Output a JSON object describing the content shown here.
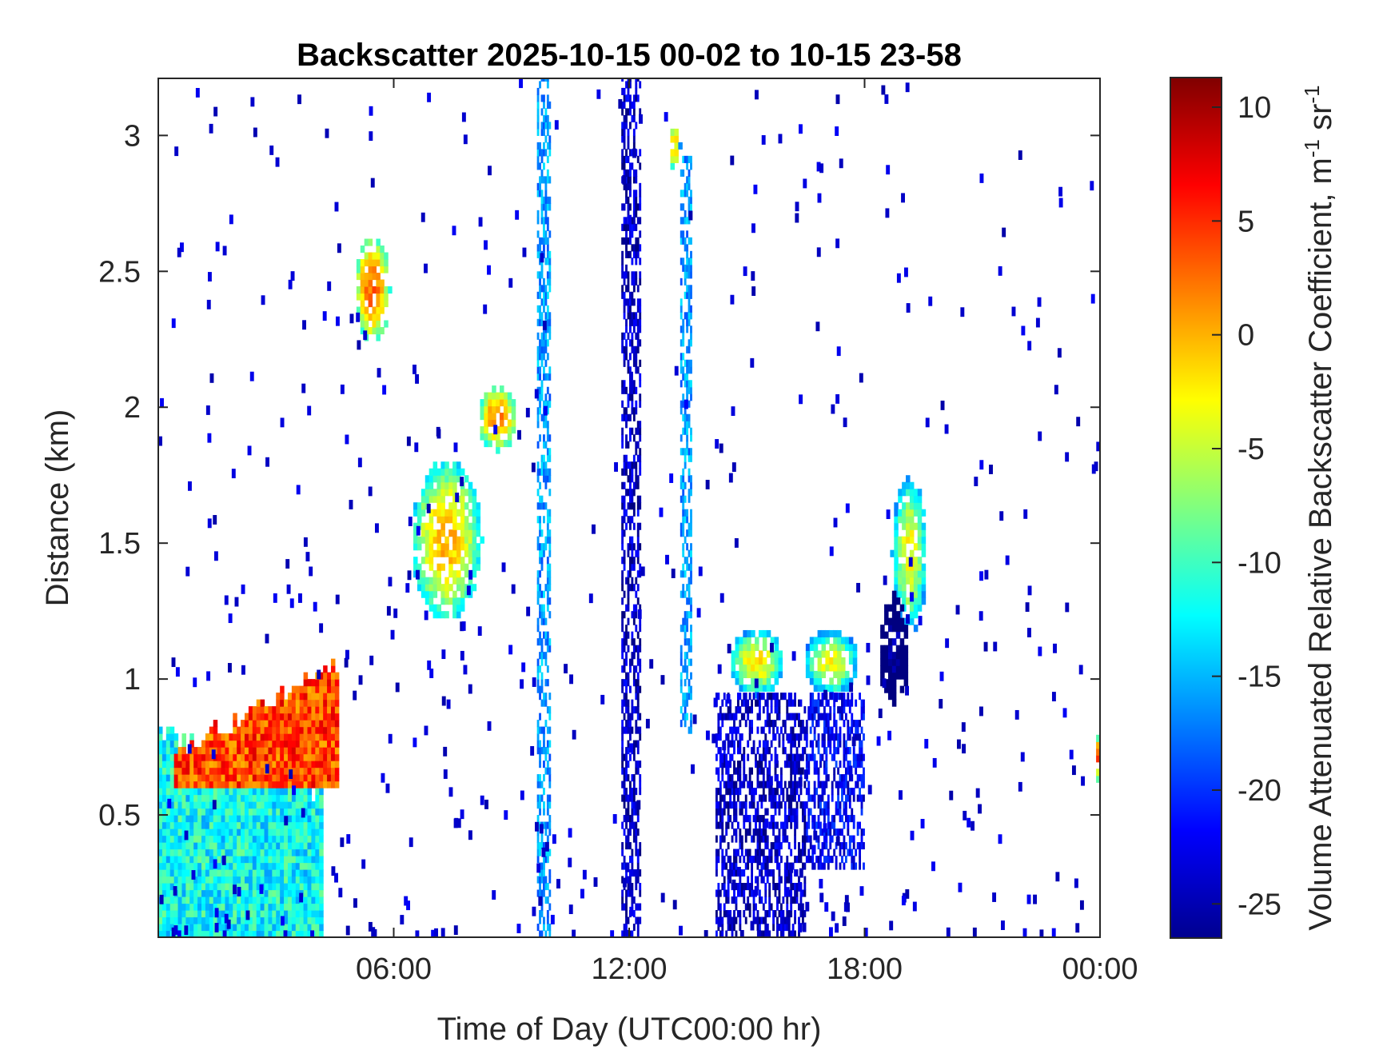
{
  "chart_data": {
    "type": "heatmap",
    "title": "Backscatter 2025-10-15 00-02 to 10-15 23-58",
    "xlabel": "Time of Day (UTC00:00 hr)",
    "ylabel": "Distance (km)",
    "x_unit": "hours UTC",
    "xlim": [
      0,
      24
    ],
    "ylim": [
      0.05,
      3.21
    ],
    "x_ticks": [
      {
        "value": 6,
        "label": "06:00"
      },
      {
        "value": 12,
        "label": "12:00"
      },
      {
        "value": 18,
        "label": "18:00"
      },
      {
        "value": 24,
        "label": "00:00"
      }
    ],
    "y_ticks": [
      {
        "value": 0.5,
        "label": "0.5"
      },
      {
        "value": 1,
        "label": "1"
      },
      {
        "value": 1.5,
        "label": "1.5"
      },
      {
        "value": 2,
        "label": "2"
      },
      {
        "value": 2.5,
        "label": "2.5"
      },
      {
        "value": 3,
        "label": "3"
      }
    ],
    "colorbar": {
      "label_main": "Volume Attenuated Relative Backscatter Coefficient, m",
      "label_sup1": "-1",
      "label_mid": " sr",
      "label_sup2": "-1",
      "range": [
        -26.5,
        11.3
      ],
      "colormap": "jet",
      "ticks": [
        {
          "value": 10,
          "label": "10"
        },
        {
          "value": 5,
          "label": "5"
        },
        {
          "value": 0,
          "label": "0"
        },
        {
          "value": -5,
          "label": "-5"
        },
        {
          "value": -10,
          "label": "-10"
        },
        {
          "value": -15,
          "label": "-15"
        },
        {
          "value": -20,
          "label": "-20"
        },
        {
          "value": -25,
          "label": "-25"
        }
      ]
    },
    "features": [
      {
        "kind": "layer",
        "x": [
          0,
          4.2
        ],
        "top": [
          0.8,
          0.55
        ],
        "bottom": [
          0.05,
          0.05
        ],
        "value": -12
      },
      {
        "kind": "layer",
        "x": [
          0.4,
          4.6
        ],
        "top": [
          0.72,
          1.05
        ],
        "bottom": [
          0.6,
          0.6
        ],
        "value": 4
      },
      {
        "kind": "blob",
        "cx": 5.4,
        "cy": 2.42,
        "rx": 0.45,
        "ry": 0.2,
        "value": 3
      },
      {
        "kind": "blob",
        "cx": 7.3,
        "cy": 1.5,
        "rx": 0.9,
        "ry": 0.3,
        "value": 0
      },
      {
        "kind": "blob",
        "cx": 8.6,
        "cy": 1.95,
        "rx": 0.5,
        "ry": 0.12,
        "value": 2
      },
      {
        "kind": "blob",
        "cx": 13.1,
        "cy": 2.95,
        "rx": 0.15,
        "ry": 0.1,
        "value": -1
      },
      {
        "kind": "blob",
        "cx": 15.2,
        "cy": 1.05,
        "rx": 0.7,
        "ry": 0.12,
        "value": -2
      },
      {
        "kind": "blob",
        "cx": 17.1,
        "cy": 1.05,
        "rx": 0.7,
        "ry": 0.12,
        "value": -3
      },
      {
        "kind": "blob",
        "cx": 19.1,
        "cy": 1.45,
        "rx": 0.45,
        "ry": 0.3,
        "value": -3
      },
      {
        "kind": "blob",
        "cx": 18.7,
        "cy": 1.1,
        "rx": 0.4,
        "ry": 0.2,
        "value": -24
      },
      {
        "kind": "blob",
        "cx": 23.9,
        "cy": 0.7,
        "rx": 0.1,
        "ry": 0.08,
        "value": 3
      },
      {
        "kind": "column",
        "x": [
          9.65,
          10.0
        ],
        "y": [
          0.05,
          3.21
        ],
        "value": -16
      },
      {
        "kind": "column",
        "x": [
          11.8,
          12.3
        ],
        "y": [
          0.05,
          3.21
        ],
        "value": -24
      },
      {
        "kind": "column",
        "x": [
          13.3,
          13.6
        ],
        "y": [
          0.8,
          2.9
        ],
        "value": -16
      },
      {
        "kind": "column",
        "x": [
          14.2,
          16.5
        ],
        "y": [
          0.05,
          0.95
        ],
        "value": -24
      },
      {
        "kind": "column",
        "x": [
          16.5,
          18.0
        ],
        "y": [
          0.3,
          0.95
        ],
        "value": -22
      }
    ]
  }
}
